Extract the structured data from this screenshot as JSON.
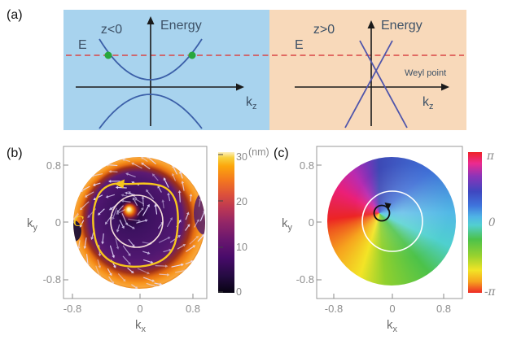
{
  "fig": {
    "panels": {
      "a": {
        "label": "(a)",
        "left": {
          "region": "z<0",
          "energy": "Energy",
          "e": "E",
          "k_base": "k",
          "k_sub": "z"
        },
        "right": {
          "region": "z>0",
          "energy": "Energy",
          "e": "E",
          "k_base": "k",
          "k_sub": "z",
          "weyl": "Weyl point"
        }
      },
      "b": {
        "label": "(b)",
        "x_ticks": [
          "-0.8",
          "0",
          "0.8"
        ],
        "y_ticks": [
          "0.8",
          "0",
          "-0.8"
        ],
        "xlabel_base": "k",
        "xlabel_sub": "x",
        "ylabel_base": "k",
        "ylabel_sub": "y",
        "colorbar": {
          "ticks": [
            "30",
            "20",
            "10",
            "0"
          ],
          "unit": "(nm)"
        },
        "contour_label": "C"
      },
      "c": {
        "label": "(c)",
        "x_ticks": [
          "-0.8",
          "0",
          "0.8"
        ],
        "y_ticks": [
          "0.8",
          "0",
          "-0.8"
        ],
        "xlabel_base": "k",
        "xlabel_sub": "x",
        "ylabel_base": "k",
        "ylabel_sub": "y",
        "colorbar": {
          "ticks": [
            "π",
            "0",
            "-π"
          ]
        }
      }
    },
    "colors": {
      "bg_left": "#a8d3ee",
      "bg_right": "#f8d9ba",
      "band_blue": "#3b5fa8",
      "cone_blue": "#4f55ab",
      "fermi_red": "#d94545",
      "dot_green": "#28a73c",
      "contour_yellow": "#f8c71c"
    }
  },
  "chart_data": [
    {
      "panel": "a",
      "type": "line",
      "title": "Energy vs k_z dispersion schematic",
      "subpanels": [
        {
          "region": "z<0",
          "content": "gapped hyperbolic bands symmetric about k_z=0; upper band minimum above E=0; horizontal dashed Fermi level E crosses upper band at two points marked with green dots"
        },
        {
          "region": "z>0",
          "content": "gapless linear cone (two straight lines crossing) forming a Weyl point slightly above the k_z axis; dashed Fermi level E crosses both branches"
        }
      ]
    },
    {
      "panel": "b",
      "type": "heatmap",
      "xlabel": "k_x",
      "ylabel": "k_y",
      "xlim": [
        -0.9,
        0.9
      ],
      "ylim": [
        -0.9,
        0.9
      ],
      "x_ticks": [
        -0.8,
        0,
        0.8
      ],
      "y_ticks": [
        -0.8,
        0,
        0.8
      ],
      "colorbar": {
        "label": "(nm)",
        "range": [
          0,
          30
        ],
        "ticks": [
          0,
          10,
          20,
          30
        ],
        "colormap": "inferno"
      },
      "vector_field": {
        "style": "spiral",
        "direction": "counterclockwise",
        "color": "white-lavender"
      },
      "description": "displacement-magnitude map on a circular k-space disk: bright white/orange core offset up-left of center, dark indigo ring, purple midfield, bright orange rim; overlaid white spiral quiver arrows, thin white circle around the core, and yellow counterclockwise integration contour labeled C"
    },
    {
      "panel": "c",
      "type": "heatmap",
      "xlabel": "k_x",
      "ylabel": "k_y",
      "xlim": [
        -0.9,
        0.9
      ],
      "ylim": [
        -0.9,
        0.9
      ],
      "x_ticks": [
        -0.8,
        0,
        0.8
      ],
      "y_ticks": [
        -0.8,
        0,
        0.8
      ],
      "colorbar": {
        "range": [
          -3.14159,
          3.14159
        ],
        "ticks": [
          "π",
          "0",
          "-π"
        ],
        "colormap": "hsv-phase"
      },
      "description": "phase map winding once around a singularity left/up of disk center: 0 (cyan) to the right, +π/2 (blue) on top, ±π (red) to the left, -π/2 (yellow) at bottom; thin white circle and small black circulation arrow around the singularity"
    }
  ]
}
